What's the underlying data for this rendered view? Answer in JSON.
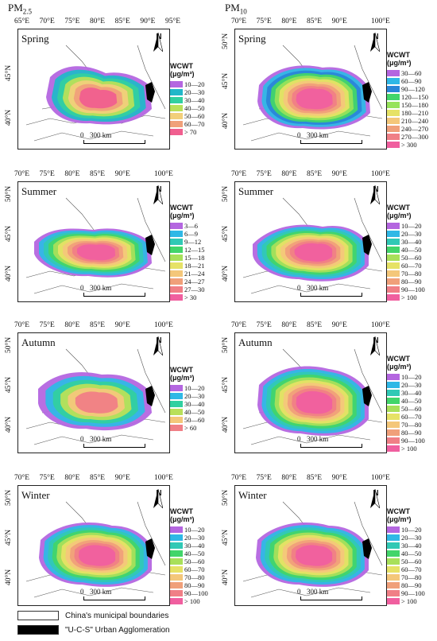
{
  "columns": {
    "left": "PM",
    "left_sub": "2.5",
    "right": "PM",
    "right_sub": "10"
  },
  "panels": [
    {
      "season": "Spring",
      "lon_ticks": [
        "65°E",
        "70°E",
        "75°E",
        "80°E",
        "85°E",
        "90°E",
        "95°E"
      ],
      "lat_ticks": [
        "45°N",
        "40°N"
      ],
      "legend_title": "WCWT",
      "legend_unit": "(μg/m³)",
      "legend": [
        {
          "label": "10—20",
          "color": "#b466e0"
        },
        {
          "label": "20—30",
          "color": "#22b7c9"
        },
        {
          "label": "30—40",
          "color": "#31d0a0"
        },
        {
          "label": "40—50",
          "color": "#b8e05a"
        },
        {
          "label": "50—60",
          "color": "#f2cf7a"
        },
        {
          "label": "60—70",
          "color": "#f0a07a"
        },
        {
          "label": "> 70",
          "color": "#f05f8f"
        }
      ],
      "scale": "300 km"
    },
    {
      "season": "Spring",
      "lon_ticks": [
        "70°E",
        "75°E",
        "80°E",
        "85°E",
        "90°E",
        "100°E"
      ],
      "lat_ticks": [
        "50°N",
        "45°N",
        "40°N"
      ],
      "legend_title": "WCWT",
      "legend_unit": "(μg/m³)",
      "legend": [
        {
          "label": "30—60",
          "color": "#b466e0"
        },
        {
          "label": "60—90",
          "color": "#2fb8e6"
        },
        {
          "label": "90—120",
          "color": "#2a86d8"
        },
        {
          "label": "120—150",
          "color": "#42d56a"
        },
        {
          "label": "150—180",
          "color": "#96e35a"
        },
        {
          "label": "180—210",
          "color": "#e6e266"
        },
        {
          "label": "210—240",
          "color": "#f4c77a"
        },
        {
          "label": "240—270",
          "color": "#f0a07a"
        },
        {
          "label": "270—300",
          "color": "#f07f86"
        },
        {
          "label": "> 300",
          "color": "#f05f9f"
        }
      ],
      "scale": "300 km"
    },
    {
      "season": "Summer",
      "lon_ticks": [
        "70°E",
        "75°E",
        "80°E",
        "85°E",
        "90°E",
        "100°E"
      ],
      "lat_ticks": [
        "50°N",
        "45°N",
        "40°N"
      ],
      "legend_title": "WCWT",
      "legend_unit": "(μg/m³)",
      "legend": [
        {
          "label": "3—6",
          "color": "#b466e0"
        },
        {
          "label": "6—9",
          "color": "#2fb8e6"
        },
        {
          "label": "9—12",
          "color": "#30c9b5"
        },
        {
          "label": "12—15",
          "color": "#42d56a"
        },
        {
          "label": "15—18",
          "color": "#a8e05a"
        },
        {
          "label": "18—21",
          "color": "#e6e266"
        },
        {
          "label": "21—24",
          "color": "#f4c77a"
        },
        {
          "label": "24—27",
          "color": "#f0a07a"
        },
        {
          "label": "27—30",
          "color": "#f07f86"
        },
        {
          "label": "> 30",
          "color": "#f05f9f"
        }
      ],
      "scale": "300 km"
    },
    {
      "season": "Summer",
      "lon_ticks": [
        "70°E",
        "75°E",
        "80°E",
        "85°E",
        "90°E",
        "100°E"
      ],
      "lat_ticks": [
        "50°N",
        "45°N",
        "40°N"
      ],
      "legend_title": "WCWT",
      "legend_unit": "(μg/m³)",
      "legend": [
        {
          "label": "10—20",
          "color": "#b466e0"
        },
        {
          "label": "20—30",
          "color": "#2fb8e6"
        },
        {
          "label": "30—40",
          "color": "#30c9b5"
        },
        {
          "label": "40—50",
          "color": "#42d56a"
        },
        {
          "label": "50—60",
          "color": "#a8e05a"
        },
        {
          "label": "60—70",
          "color": "#e6e266"
        },
        {
          "label": "70—80",
          "color": "#f4c77a"
        },
        {
          "label": "80—90",
          "color": "#f0a07a"
        },
        {
          "label": "90—100",
          "color": "#f07f86"
        },
        {
          "label": "> 100",
          "color": "#f05f9f"
        }
      ],
      "scale": "300 km"
    },
    {
      "season": "Autumn",
      "lon_ticks": [
        "70°E",
        "75°E",
        "80°E",
        "85°E",
        "90°E",
        "100°E"
      ],
      "lat_ticks": [
        "50°N",
        "45°N",
        "40°N"
      ],
      "legend_title": "WCWT",
      "legend_unit": "(μg/m³)",
      "legend": [
        {
          "label": "10—20",
          "color": "#b466e0"
        },
        {
          "label": "20—30",
          "color": "#2fb8e6"
        },
        {
          "label": "30—40",
          "color": "#31d0a0"
        },
        {
          "label": "40—50",
          "color": "#b8e05a"
        },
        {
          "label": "50—60",
          "color": "#f4c77a"
        },
        {
          "label": "> 60",
          "color": "#f07f86"
        }
      ],
      "scale": "300 km"
    },
    {
      "season": "Autumn",
      "lon_ticks": [
        "70°E",
        "75°E",
        "80°E",
        "85°E",
        "90°E",
        "100°E"
      ],
      "lat_ticks": [
        "50°N",
        "45°N",
        "40°N"
      ],
      "legend_title": "WCWT",
      "legend_unit": "(μg/m³)",
      "legend": [
        {
          "label": "10—20",
          "color": "#b466e0"
        },
        {
          "label": "20—30",
          "color": "#2fb8e6"
        },
        {
          "label": "30—40",
          "color": "#30c9b5"
        },
        {
          "label": "40—50",
          "color": "#42d56a"
        },
        {
          "label": "50—60",
          "color": "#a8e05a"
        },
        {
          "label": "60—70",
          "color": "#e6e266"
        },
        {
          "label": "70—80",
          "color": "#f4c77a"
        },
        {
          "label": "80—90",
          "color": "#f0a07a"
        },
        {
          "label": "90—100",
          "color": "#f07f86"
        },
        {
          "label": "> 100",
          "color": "#f05f9f"
        }
      ],
      "scale": "300 km"
    },
    {
      "season": "Winter",
      "lon_ticks": [
        "70°E",
        "75°E",
        "80°E",
        "85°E",
        "90°E",
        "100°E"
      ],
      "lat_ticks": [
        "50°N",
        "45°N",
        "40°N"
      ],
      "legend_title": "WCWT",
      "legend_unit": "(μg/m³)",
      "legend": [
        {
          "label": "10—20",
          "color": "#b466e0"
        },
        {
          "label": "20—30",
          "color": "#2fb8e6"
        },
        {
          "label": "30—40",
          "color": "#30c9b5"
        },
        {
          "label": "40—50",
          "color": "#42d56a"
        },
        {
          "label": "50—60",
          "color": "#a8e05a"
        },
        {
          "label": "60—70",
          "color": "#e6e266"
        },
        {
          "label": "70—80",
          "color": "#f4c77a"
        },
        {
          "label": "80—90",
          "color": "#f0a07a"
        },
        {
          "label": "90—100",
          "color": "#f07f86"
        },
        {
          "label": "> 100",
          "color": "#f05f9f"
        }
      ],
      "scale": "300 km"
    },
    {
      "season": "Winter",
      "lon_ticks": [
        "70°E",
        "75°E",
        "80°E",
        "85°E",
        "90°E",
        "100°E"
      ],
      "lat_ticks": [
        "50°N",
        "45°N",
        "40°N"
      ],
      "legend_title": "WCWT",
      "legend_unit": "(μg/m³)",
      "legend": [
        {
          "label": "10—20",
          "color": "#b466e0"
        },
        {
          "label": "20—30",
          "color": "#2fb8e6"
        },
        {
          "label": "30—40",
          "color": "#30c9b5"
        },
        {
          "label": "40—50",
          "color": "#42d56a"
        },
        {
          "label": "50—60",
          "color": "#a8e05a"
        },
        {
          "label": "60—70",
          "color": "#e6e266"
        },
        {
          "label": "70—80",
          "color": "#f4c77a"
        },
        {
          "label": "80—90",
          "color": "#f0a07a"
        },
        {
          "label": "90—100",
          "color": "#f07f86"
        },
        {
          "label": "> 100",
          "color": "#f05f9f"
        }
      ],
      "scale": "300 km"
    }
  ],
  "bottom_legend": [
    {
      "label": "China's municipal boundaries",
      "color": "#ffffff"
    },
    {
      "label": "\"U-C-S\" Urban Agglomeration",
      "color": "#000000"
    }
  ],
  "north_label": "N"
}
